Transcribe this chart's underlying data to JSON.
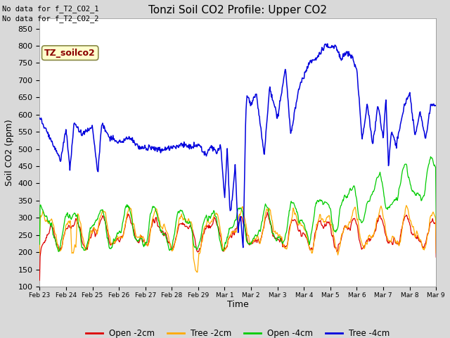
{
  "title": "Tonzi Soil CO2 Profile: Upper CO2",
  "xlabel": "Time",
  "ylabel": "Soil CO2 (ppm)",
  "ylim": [
    100,
    880
  ],
  "yticks": [
    100,
    150,
    200,
    250,
    300,
    350,
    400,
    450,
    500,
    550,
    600,
    650,
    700,
    750,
    800,
    850
  ],
  "no_data_text": [
    "No data for f_T2_CO2_1",
    "No data for f_T2_CO2_2"
  ],
  "legend_label_text": "TZ_soilco2",
  "bg_color": "#d9d9d9",
  "plot_bg_color": "#ffffff",
  "colors": {
    "open_2cm": "#dd0000",
    "tree_2cm": "#ffaa00",
    "open_4cm": "#00cc00",
    "tree_4cm": "#0000dd"
  },
  "x_tick_labels": [
    "Feb 23",
    "Feb 24",
    "Feb 25",
    "Feb 26",
    "Feb 27",
    "Feb 28",
    "Feb 29",
    "Mar 1",
    "Mar 2",
    "Mar 3",
    "Mar 4",
    "Mar 5",
    "Mar 6",
    "Mar 7",
    "Mar 8",
    "Mar 9"
  ],
  "n_points": 800
}
